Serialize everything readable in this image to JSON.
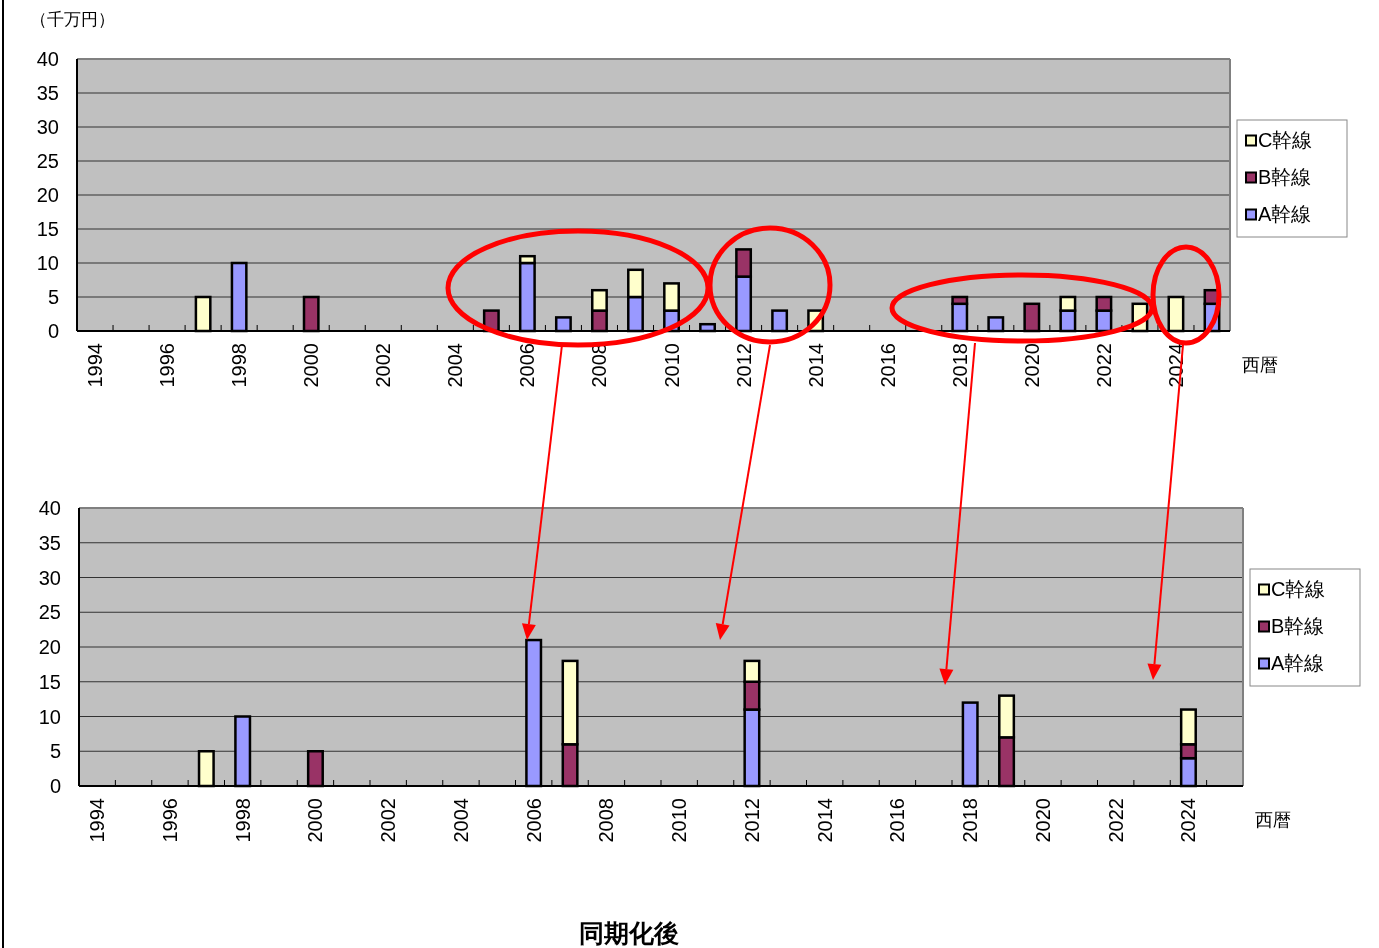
{
  "chart_data": [
    {
      "type": "bar",
      "stacked": true,
      "ylabel": "（千万円）",
      "xlabel": "西暦",
      "ylim": [
        0,
        40
      ],
      "yticks": [
        0,
        5,
        10,
        15,
        20,
        25,
        30,
        35,
        40
      ],
      "grid": "y",
      "legend": "right",
      "categories": [
        "1994",
        null,
        "1996",
        null,
        "1998",
        null,
        "2000",
        null,
        "2002",
        null,
        "2004",
        null,
        "2006",
        null,
        "2008",
        null,
        "2010",
        null,
        "2012",
        null,
        "2014",
        null,
        "2016",
        null,
        "2018",
        null,
        "2020",
        null,
        "2022",
        null,
        "2024",
        null
      ],
      "series": [
        {
          "name": "A幹線",
          "color": "#9999ff",
          "values": [
            null,
            null,
            null,
            null,
            10,
            null,
            null,
            null,
            null,
            null,
            null,
            null,
            10,
            2,
            null,
            5,
            3,
            1,
            8,
            3,
            null,
            null,
            null,
            null,
            4,
            2,
            null,
            3,
            3,
            null,
            null,
            4
          ]
        },
        {
          "name": "B幹線",
          "color": "#993366",
          "values": [
            null,
            null,
            null,
            null,
            null,
            null,
            5,
            null,
            null,
            null,
            null,
            3,
            null,
            null,
            3,
            null,
            null,
            null,
            4,
            null,
            null,
            null,
            null,
            null,
            1,
            null,
            4,
            null,
            2,
            null,
            null,
            2
          ]
        },
        {
          "name": "C幹線",
          "color": "#ffffcc",
          "values": [
            null,
            null,
            null,
            5,
            null,
            null,
            null,
            null,
            null,
            null,
            null,
            null,
            1,
            null,
            3,
            4,
            4,
            null,
            null,
            null,
            3,
            null,
            null,
            null,
            null,
            null,
            null,
            2,
            null,
            4,
            5,
            null
          ]
        }
      ]
    },
    {
      "type": "bar",
      "stacked": true,
      "xlabel": "西暦",
      "ylim": [
        0,
        40
      ],
      "yticks": [
        0,
        5,
        10,
        15,
        20,
        25,
        30,
        35,
        40
      ],
      "grid": "y",
      "legend": "right",
      "annotations": [
        "同期化後"
      ],
      "categories": [
        "1994",
        null,
        "1996",
        null,
        "1998",
        null,
        "2000",
        null,
        "2002",
        null,
        "2004",
        null,
        "2006",
        null,
        "2008",
        null,
        "2010",
        null,
        "2012",
        null,
        "2014",
        null,
        "2016",
        null,
        "2018",
        null,
        "2020",
        null,
        "2022",
        null,
        "2024",
        null
      ],
      "series": [
        {
          "name": "A幹線",
          "color": "#9999ff",
          "values": [
            null,
            null,
            null,
            null,
            10,
            null,
            null,
            null,
            null,
            null,
            null,
            null,
            21,
            null,
            null,
            null,
            null,
            null,
            11,
            null,
            null,
            null,
            null,
            null,
            12,
            null,
            null,
            null,
            null,
            null,
            4,
            null
          ]
        },
        {
          "name": "B幹線",
          "color": "#993366",
          "values": [
            null,
            null,
            null,
            null,
            null,
            null,
            5,
            null,
            null,
            null,
            null,
            null,
            null,
            6,
            null,
            null,
            null,
            null,
            4,
            null,
            null,
            null,
            null,
            null,
            null,
            7,
            null,
            null,
            null,
            null,
            2,
            null
          ]
        },
        {
          "name": "C幹線",
          "color": "#ffffcc",
          "values": [
            null,
            null,
            null,
            5,
            null,
            null,
            null,
            null,
            null,
            null,
            null,
            null,
            null,
            12,
            null,
            null,
            null,
            null,
            3,
            null,
            null,
            null,
            null,
            null,
            null,
            6,
            null,
            null,
            null,
            null,
            5,
            null
          ]
        }
      ]
    }
  ]
}
